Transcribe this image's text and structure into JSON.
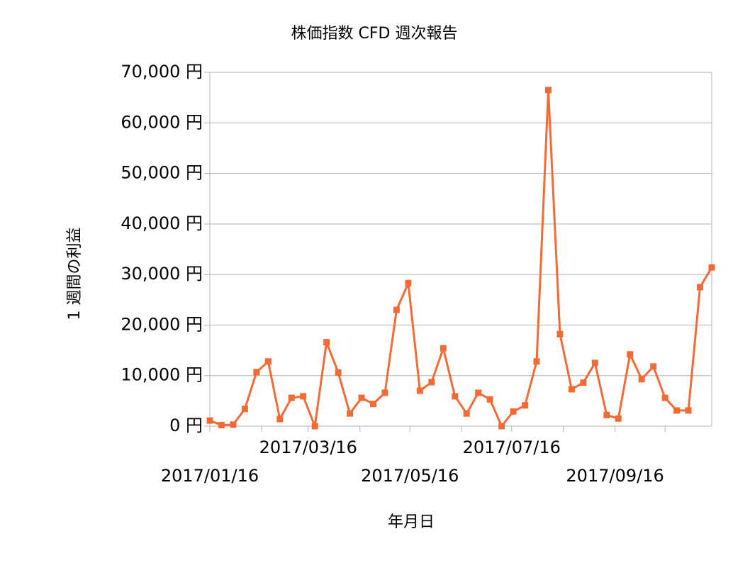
{
  "chart_data": {
    "type": "line",
    "title": "株価指数 CFD 週次報告",
    "x_label": "年月日",
    "y_label": "1 週間の利益",
    "x": [
      "2017/01/16",
      "2017/01/23",
      "2017/01/30",
      "2017/02/06",
      "2017/02/13",
      "2017/02/20",
      "2017/02/27",
      "2017/03/06",
      "2017/03/13",
      "2017/03/20",
      "2017/03/27",
      "2017/04/03",
      "2017/04/10",
      "2017/04/17",
      "2017/04/24",
      "2017/05/01",
      "2017/05/08",
      "2017/05/15",
      "2017/05/22",
      "2017/05/29",
      "2017/06/05",
      "2017/06/12",
      "2017/06/19",
      "2017/06/26",
      "2017/07/03",
      "2017/07/10",
      "2017/07/17",
      "2017/07/24",
      "2017/07/31",
      "2017/08/07",
      "2017/08/14",
      "2017/08/21",
      "2017/08/28",
      "2017/09/04",
      "2017/09/11",
      "2017/09/18",
      "2017/09/25",
      "2017/10/02",
      "2017/10/09",
      "2017/10/16",
      "2017/10/23",
      "2017/10/30",
      "2017/11/06",
      "2017/11/13"
    ],
    "series": [
      {
        "name": "1 週間の利益",
        "color": "#f26b36",
        "values": [
          1100,
          200,
          300,
          3400,
          10700,
          12800,
          1400,
          5600,
          5900,
          0,
          16600,
          10600,
          2500,
          5600,
          4400,
          6600,
          23000,
          28300,
          7000,
          8700,
          15400,
          5900,
          2500,
          6600,
          5300,
          0,
          2900,
          4100,
          12800,
          66500,
          18200,
          7300,
          8600,
          12500,
          2200,
          1500,
          14200,
          9300,
          11800,
          5600,
          3100,
          3100,
          27500,
          31400
        ]
      }
    ],
    "xlim": [
      "2017/01/16",
      "2017/11/13"
    ],
    "xticks": [
      "2017/01/16",
      "2017/03/16",
      "2017/05/16",
      "2017/07/16",
      "2017/09/16"
    ],
    "xminor_ticks": [
      "2017/02/16",
      "2017/04/16",
      "2017/06/16",
      "2017/08/16",
      "2017/10/16"
    ],
    "ylim": [
      0,
      70000
    ],
    "yticks": [
      {
        "value": 0,
        "label": "0 円"
      },
      {
        "value": 10000,
        "label": "10,000 円"
      },
      {
        "value": 20000,
        "label": "20,000 円"
      },
      {
        "value": 30000,
        "label": "30,000 円"
      },
      {
        "value": 40000,
        "label": "40,000 円"
      },
      {
        "value": 50000,
        "label": "50,000 円"
      },
      {
        "value": 60000,
        "label": "60,000 円"
      },
      {
        "value": 70000,
        "label": "70,000 円"
      }
    ],
    "grid": true
  }
}
